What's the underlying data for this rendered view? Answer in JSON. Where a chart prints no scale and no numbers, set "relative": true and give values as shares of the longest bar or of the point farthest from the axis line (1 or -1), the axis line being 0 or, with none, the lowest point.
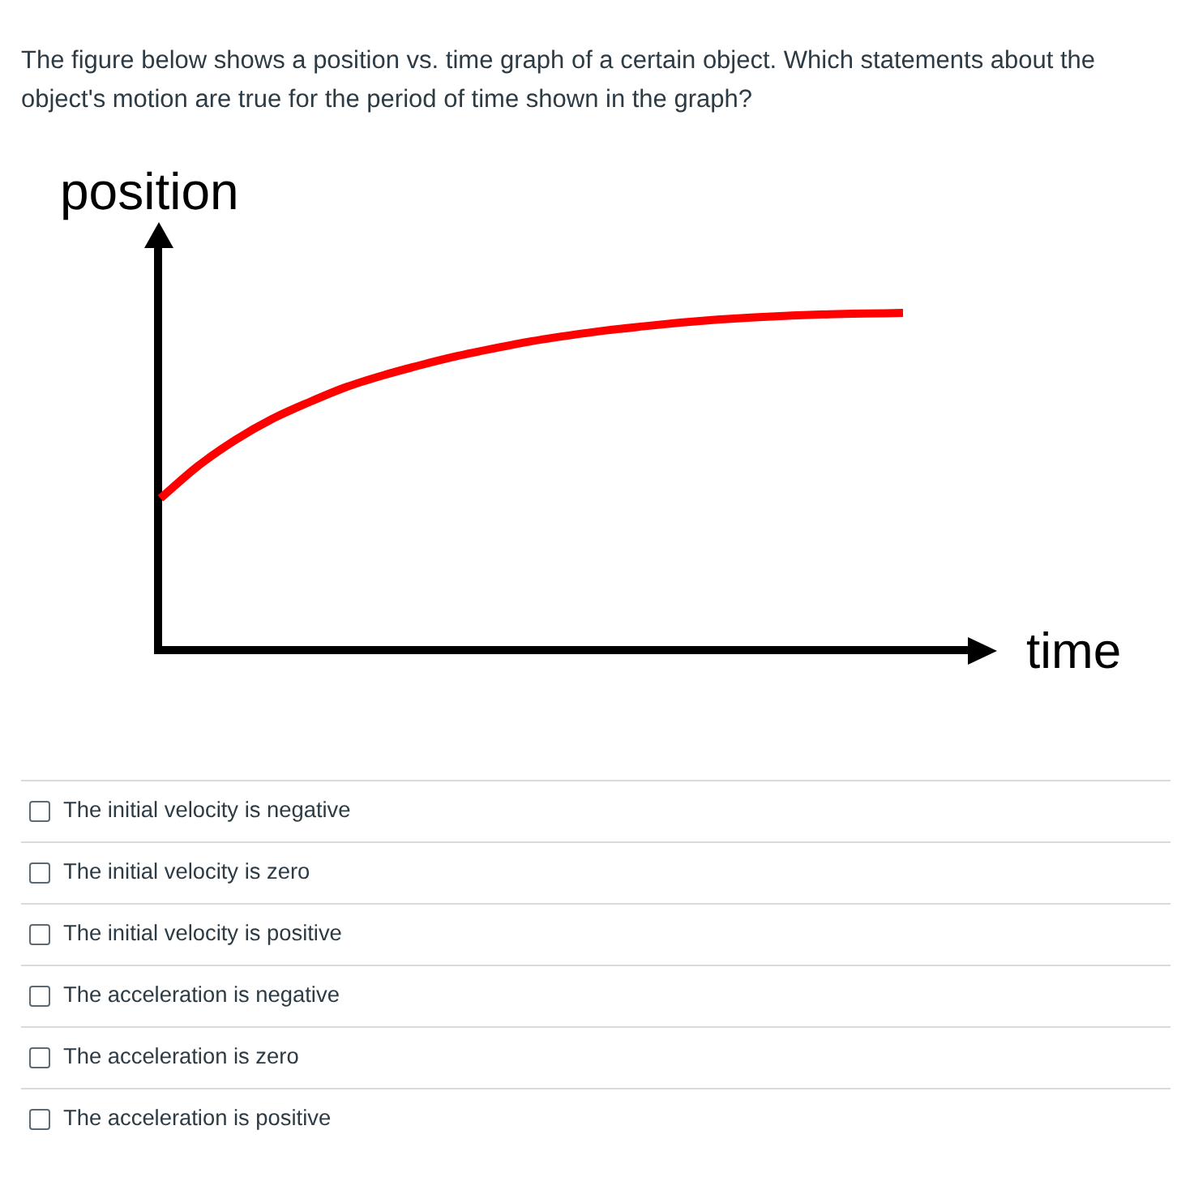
{
  "chart_data": {
    "type": "line",
    "relative": true,
    "title": "The figure below shows a position vs. time graph of a certain object. Which statements about the object's motion are true for the period of time shown in the graph?",
    "xlabel": "time",
    "ylabel": "position",
    "categories": [
      null,
      null,
      null,
      null,
      null,
      null,
      null,
      null,
      null,
      null,
      null,
      null,
      null,
      null,
      null,
      null,
      null,
      null,
      null,
      null,
      null
    ],
    "values": [
      0.45,
      0.545,
      0.622,
      0.685,
      0.735,
      0.78,
      0.815,
      0.845,
      0.872,
      0.895,
      0.916,
      0.933,
      0.948,
      0.96,
      0.971,
      0.98,
      0.987,
      0.992,
      0.996,
      0.998,
      1.0
    ],
    "color": "#ff0000",
    "marker": "none",
    "line_style": "solid",
    "annotations": [
      "The initial velocity is negative",
      "The initial velocity is zero",
      "The initial velocity is positive",
      "The acceleration is negative",
      "The acceleration is zero",
      "The acceleration is positive"
    ]
  }
}
